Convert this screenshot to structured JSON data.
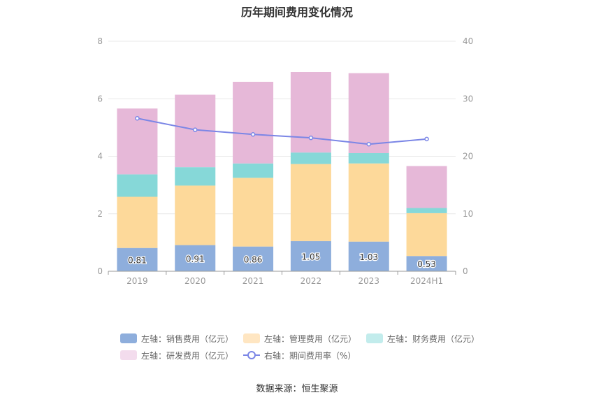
{
  "title": "历年期间费用变化情况",
  "source": "数据来源：恒生聚源",
  "colors": {
    "sales": "#8eaedc",
    "admin": "#fdd99a",
    "finance": "#86d8d8",
    "rnd": "#e6b8d8",
    "rate": "#7b86e6",
    "grid": "#e8e8e8",
    "axis_text": "#999999"
  },
  "legend": [
    {
      "label": "左轴：销售费用（亿元）",
      "color": "#8eaedc",
      "kind": "bar"
    },
    {
      "label": "左轴：管理费用（亿元）",
      "color": "#ffe6c2",
      "kind": "bar"
    },
    {
      "label": "左轴：财务费用（亿元）",
      "color": "#c2ecec",
      "kind": "bar"
    },
    {
      "label": "左轴：研发费用（亿元）",
      "color": "#f3dced",
      "kind": "bar"
    },
    {
      "label": "右轴：期间费用率（%）",
      "color": "#7b86e6",
      "kind": "line"
    }
  ],
  "chart_data": {
    "type": "bar",
    "stacked": true,
    "title": "历年期间费用变化情况",
    "categories": [
      "2019",
      "2020",
      "2021",
      "2022",
      "2023",
      "2024H1"
    ],
    "y_left": {
      "ylim": [
        0,
        8
      ],
      "ticks": [
        "0",
        "2",
        "4",
        "6",
        "8"
      ]
    },
    "y_right": {
      "ylim": [
        0,
        40
      ],
      "ticks": [
        "0",
        "10",
        "20",
        "30",
        "40"
      ]
    },
    "series": [
      {
        "name": "左轴：销售费用（亿元）",
        "axis": "left",
        "kind": "bar",
        "values": [
          0.81,
          0.91,
          0.86,
          1.05,
          1.03,
          0.53
        ],
        "labels": [
          "0.81",
          "0.91",
          "0.86",
          "1.05",
          "1.03",
          "0.53"
        ]
      },
      {
        "name": "左轴：管理费用（亿元）",
        "axis": "left",
        "kind": "bar",
        "values": [
          1.78,
          2.07,
          2.39,
          2.68,
          2.72,
          1.49
        ]
      },
      {
        "name": "左轴：财务费用（亿元）",
        "axis": "left",
        "kind": "bar",
        "values": [
          0.78,
          0.64,
          0.5,
          0.4,
          0.36,
          0.18
        ]
      },
      {
        "name": "左轴：研发费用（亿元）",
        "axis": "left",
        "kind": "bar",
        "values": [
          2.29,
          2.52,
          2.84,
          2.8,
          2.78,
          1.46
        ]
      },
      {
        "name": "右轴：期间费用率（%）",
        "axis": "right",
        "kind": "line",
        "values": [
          26.6,
          24.6,
          23.8,
          23.2,
          22.1,
          23.0
        ]
      }
    ],
    "grid": true,
    "legend_position": "bottom"
  }
}
